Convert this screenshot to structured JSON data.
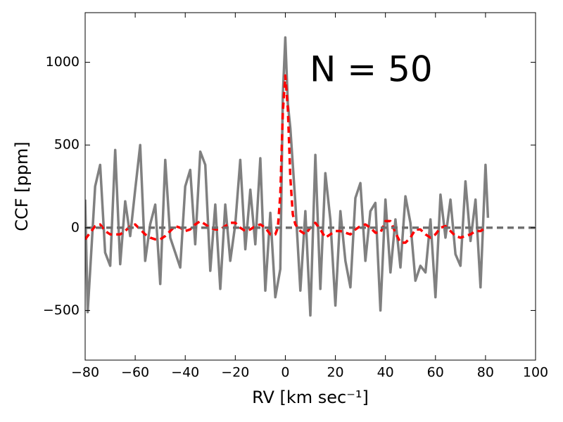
{
  "chart_data": {
    "type": "line",
    "xlabel": "RV [km sec⁻¹]",
    "ylabel": "CCF [ppm]",
    "annotation": "N = 50",
    "xlim": [
      -80,
      100
    ],
    "ylim": [
      -800,
      1300
    ],
    "xticks": [
      {
        "value": -80,
        "label": "−80"
      },
      {
        "value": -60,
        "label": "−60"
      },
      {
        "value": -40,
        "label": "−40"
      },
      {
        "value": -20,
        "label": "−20"
      },
      0,
      20,
      40,
      60,
      80,
      100
    ],
    "yticks": [
      {
        "value": -500,
        "label": "−500"
      },
      0,
      500,
      1000
    ],
    "series": [
      {
        "color": "#808080",
        "dash": false,
        "x": [
          -80,
          -79,
          -76,
          -74,
          -72,
          -70,
          -68,
          -66,
          -64,
          -62,
          -60,
          -58,
          -56,
          -54,
          -52,
          -50,
          -48,
          -46,
          -44,
          -42,
          -40,
          -38,
          -36,
          -34,
          -32,
          -30,
          -28,
          -26,
          -24,
          -22,
          -20,
          -18,
          -16,
          -14,
          -12,
          -10,
          -8,
          -6,
          -4,
          -2,
          -1,
          0,
          1,
          2,
          4,
          6,
          8,
          10,
          12,
          14,
          16,
          18,
          20,
          22,
          24,
          26,
          28,
          30,
          32,
          34,
          36,
          38,
          40,
          42,
          44,
          46,
          48,
          50,
          52,
          54,
          56,
          58,
          60,
          62,
          64,
          66,
          68,
          70,
          72,
          74,
          76,
          78,
          80,
          81
        ],
        "values": [
          170,
          -510,
          250,
          380,
          -150,
          -230,
          470,
          -220,
          160,
          -50,
          230,
          500,
          -200,
          20,
          140,
          -340,
          410,
          -60,
          -150,
          -240,
          250,
          350,
          -100,
          460,
          380,
          -260,
          140,
          -370,
          140,
          -200,
          20,
          410,
          -130,
          230,
          -100,
          420,
          -380,
          90,
          -420,
          -250,
          800,
          1150,
          750,
          600,
          150,
          -380,
          100,
          -530,
          440,
          -370,
          330,
          50,
          -470,
          100,
          -200,
          -360,
          180,
          270,
          -200,
          100,
          150,
          -500,
          170,
          -270,
          50,
          -240,
          190,
          30,
          -320,
          -230,
          -270,
          50,
          -420,
          200,
          -60,
          170,
          -160,
          -230,
          280,
          -80,
          170,
          -360,
          380,
          60
        ]
      },
      {
        "color": "#ff0000",
        "dash": true,
        "x": [
          -80,
          -78,
          -76,
          -74,
          -72,
          -70,
          -68,
          -66,
          -64,
          -62,
          -60,
          -58,
          -56,
          -54,
          -52,
          -50,
          -48,
          -46,
          -44,
          -42,
          -40,
          -38,
          -36,
          -34,
          -32,
          -30,
          -28,
          -26,
          -24,
          -22,
          -20,
          -18,
          -16,
          -14,
          -12,
          -10,
          -8,
          -6,
          -4,
          -3,
          -2,
          -1,
          0,
          1,
          2,
          3,
          4,
          6,
          8,
          10,
          12,
          14,
          16,
          18,
          20,
          22,
          24,
          26,
          28,
          30,
          32,
          34,
          36,
          38,
          40,
          42,
          44,
          46,
          48,
          50,
          52,
          54,
          56,
          58,
          60,
          62,
          64,
          66,
          68,
          70,
          72,
          74,
          76,
          78,
          80
        ],
        "values": [
          -70,
          -30,
          10,
          20,
          -20,
          -40,
          -40,
          -40,
          -20,
          10,
          20,
          -10,
          -40,
          -60,
          -70,
          -70,
          -50,
          -20,
          10,
          0,
          -20,
          -10,
          20,
          40,
          20,
          0,
          -10,
          -10,
          10,
          30,
          30,
          0,
          -20,
          -10,
          10,
          20,
          0,
          -40,
          -40,
          0,
          200,
          700,
          920,
          720,
          300,
          80,
          20,
          -20,
          -40,
          0,
          30,
          -10,
          -60,
          -40,
          -20,
          -20,
          -30,
          -40,
          -10,
          10,
          20,
          0,
          -30,
          -30,
          40,
          40,
          -30,
          -90,
          -90,
          -60,
          -10,
          -10,
          -40,
          -60,
          -40,
          0,
          10,
          -20,
          -50,
          -60,
          -50,
          -40,
          -20,
          -20,
          0
        ]
      },
      {
        "color": "#707070",
        "dash": true,
        "x": [
          -80,
          100
        ],
        "values": [
          0,
          0
        ]
      }
    ]
  }
}
